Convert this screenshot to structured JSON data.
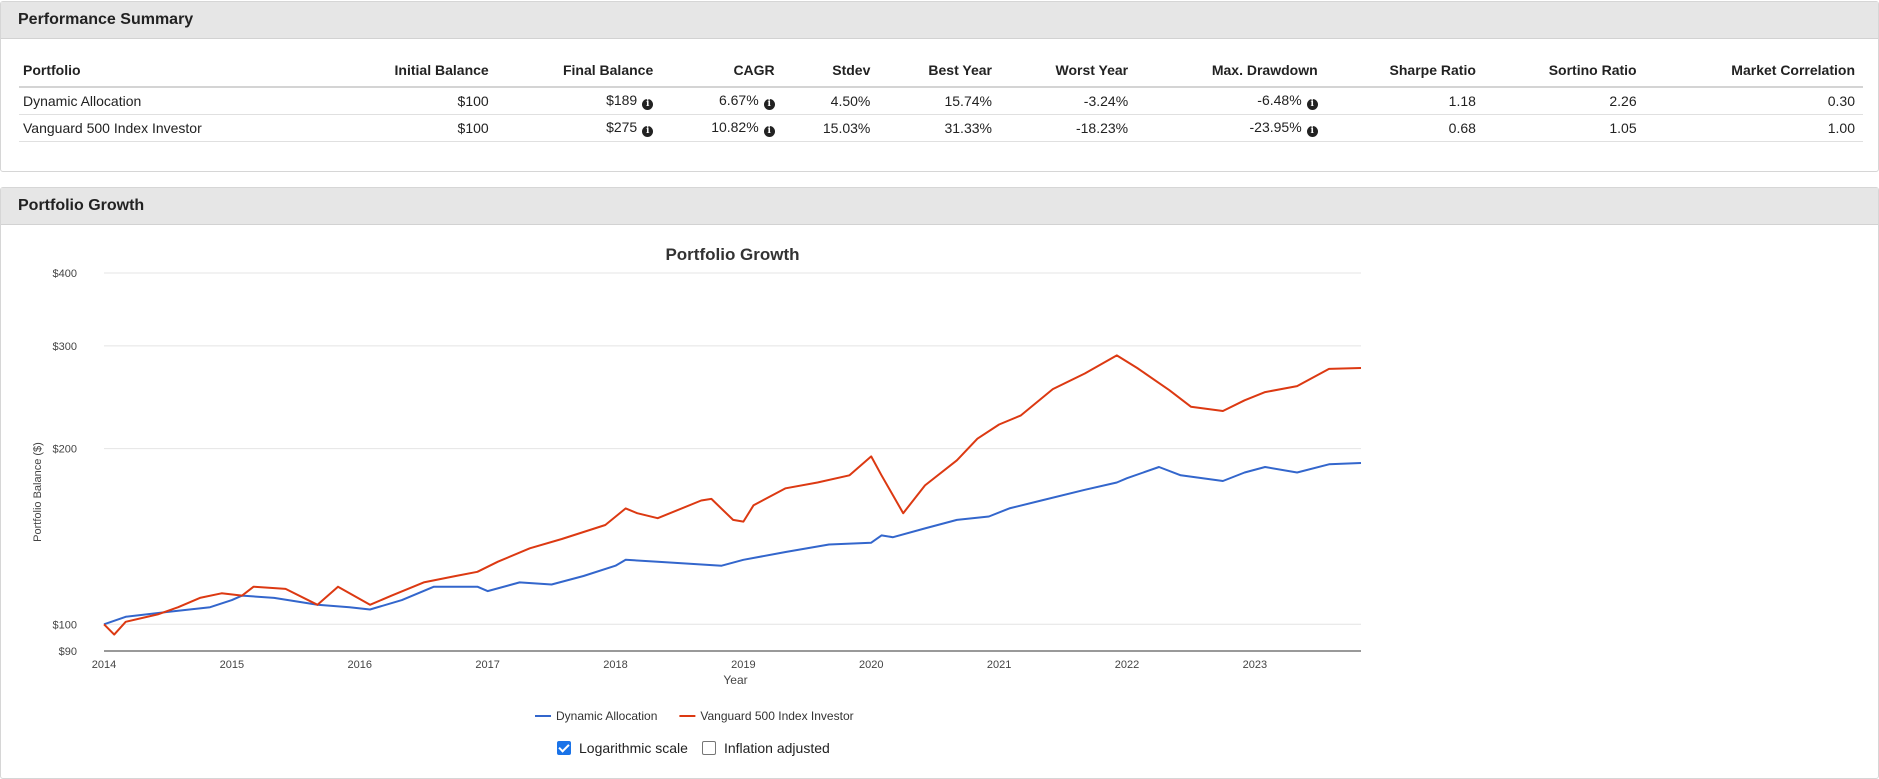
{
  "summary": {
    "title": "Performance Summary",
    "columns": [
      "Portfolio",
      "Initial Balance",
      "Final Balance",
      "CAGR",
      "Stdev",
      "Best Year",
      "Worst Year",
      "Max. Drawdown",
      "Sharpe Ratio",
      "Sortino Ratio",
      "Market Correlation"
    ],
    "rows": [
      {
        "portfolio": "Dynamic Allocation",
        "initial": "$100",
        "final": "$189",
        "cagr": "6.67%",
        "stdev": "4.50%",
        "best": "15.74%",
        "worst": "-3.24%",
        "drawdown": "-6.48%",
        "sharpe": "1.18",
        "sortino": "2.26",
        "correlation": "0.30"
      },
      {
        "portfolio": "Vanguard 500 Index Investor",
        "initial": "$100",
        "final": "$275",
        "cagr": "10.82%",
        "stdev": "15.03%",
        "best": "31.33%",
        "worst": "-18.23%",
        "drawdown": "-23.95%",
        "sharpe": "0.68",
        "sortino": "1.05",
        "correlation": "1.00"
      }
    ]
  },
  "growth": {
    "panel_title": "Portfolio Growth",
    "controls": {
      "log_label": "Logarithmic scale",
      "log_checked": true,
      "inflation_label": "Inflation adjusted",
      "inflation_checked": false
    }
  },
  "chart_data": {
    "type": "line",
    "title": "Portfolio Growth",
    "xlabel": "Year",
    "ylabel": "Portfolio Balance ($)",
    "y_scale": "log",
    "ylim": [
      90,
      400
    ],
    "xlim": [
      2014.0,
      2023.83
    ],
    "y_ticks": [
      90,
      100,
      200,
      300,
      400
    ],
    "y_tick_labels": [
      "$90",
      "$100",
      "$200",
      "$300",
      "$400"
    ],
    "x_ticks": [
      2014,
      2015,
      2016,
      2017,
      2018,
      2019,
      2020,
      2021,
      2022,
      2023
    ],
    "grid": true,
    "legend": "bottom",
    "series": [
      {
        "name": "Dynamic Allocation",
        "color": "#3366cc",
        "points": [
          [
            2014.0,
            100
          ],
          [
            2014.17,
            103
          ],
          [
            2014.5,
            105
          ],
          [
            2014.83,
            107
          ],
          [
            2015.0,
            110
          ],
          [
            2015.08,
            112
          ],
          [
            2015.33,
            111
          ],
          [
            2015.67,
            108
          ],
          [
            2015.92,
            107
          ],
          [
            2016.08,
            106
          ],
          [
            2016.33,
            110
          ],
          [
            2016.58,
            116
          ],
          [
            2016.92,
            116
          ],
          [
            2017.0,
            114
          ],
          [
            2017.25,
            118
          ],
          [
            2017.5,
            117
          ],
          [
            2017.75,
            121
          ],
          [
            2018.0,
            126
          ],
          [
            2018.08,
            129
          ],
          [
            2018.33,
            128
          ],
          [
            2018.58,
            127
          ],
          [
            2018.83,
            126
          ],
          [
            2019.0,
            129
          ],
          [
            2019.33,
            133
          ],
          [
            2019.67,
            137
          ],
          [
            2020.0,
            138
          ],
          [
            2020.08,
            142
          ],
          [
            2020.17,
            141
          ],
          [
            2020.42,
            146
          ],
          [
            2020.67,
            151
          ],
          [
            2020.92,
            153
          ],
          [
            2021.08,
            158
          ],
          [
            2021.33,
            163
          ],
          [
            2021.67,
            170
          ],
          [
            2021.92,
            175
          ],
          [
            2022.0,
            178
          ],
          [
            2022.25,
            186
          ],
          [
            2022.42,
            180
          ],
          [
            2022.75,
            176
          ],
          [
            2022.92,
            182
          ],
          [
            2023.08,
            186
          ],
          [
            2023.33,
            182
          ],
          [
            2023.58,
            188
          ],
          [
            2023.83,
            189
          ]
        ]
      },
      {
        "name": "Vanguard 500 Index Investor",
        "color": "#dc3912",
        "points": [
          [
            2014.0,
            100
          ],
          [
            2014.08,
            96
          ],
          [
            2014.17,
            101
          ],
          [
            2014.42,
            104
          ],
          [
            2014.58,
            107
          ],
          [
            2014.75,
            111
          ],
          [
            2014.92,
            113
          ],
          [
            2015.08,
            112
          ],
          [
            2015.17,
            116
          ],
          [
            2015.42,
            115
          ],
          [
            2015.67,
            108
          ],
          [
            2015.83,
            116
          ],
          [
            2016.08,
            108
          ],
          [
            2016.25,
            112
          ],
          [
            2016.5,
            118
          ],
          [
            2016.75,
            121
          ],
          [
            2016.92,
            123
          ],
          [
            2017.08,
            128
          ],
          [
            2017.33,
            135
          ],
          [
            2017.58,
            140
          ],
          [
            2017.92,
            148
          ],
          [
            2018.08,
            158
          ],
          [
            2018.17,
            155
          ],
          [
            2018.33,
            152
          ],
          [
            2018.67,
            163
          ],
          [
            2018.75,
            164
          ],
          [
            2018.92,
            151
          ],
          [
            2019.0,
            150
          ],
          [
            2019.08,
            160
          ],
          [
            2019.33,
            171
          ],
          [
            2019.58,
            175
          ],
          [
            2019.83,
            180
          ],
          [
            2020.0,
            194
          ],
          [
            2020.08,
            180
          ],
          [
            2020.25,
            155
          ],
          [
            2020.42,
            173
          ],
          [
            2020.67,
            191
          ],
          [
            2020.83,
            208
          ],
          [
            2021.0,
            220
          ],
          [
            2021.17,
            228
          ],
          [
            2021.42,
            253
          ],
          [
            2021.67,
            269
          ],
          [
            2021.92,
            289
          ],
          [
            2022.08,
            275
          ],
          [
            2022.33,
            252
          ],
          [
            2022.5,
            236
          ],
          [
            2022.75,
            232
          ],
          [
            2022.92,
            242
          ],
          [
            2023.08,
            250
          ],
          [
            2023.33,
            256
          ],
          [
            2023.58,
            274
          ],
          [
            2023.83,
            275
          ]
        ]
      }
    ]
  }
}
